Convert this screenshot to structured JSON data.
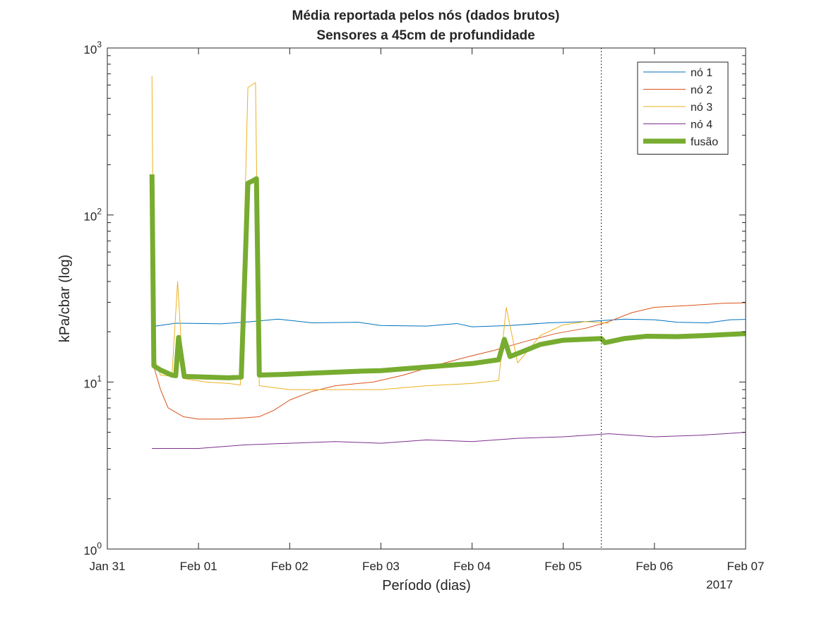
{
  "chart_data": {
    "type": "line",
    "title": "Média reportada pelos nós (dados brutos)",
    "subtitle": "Sensores a 45cm de profundidade",
    "xlabel": "Período (dias)",
    "ylabel": "kPa/cbar (log)",
    "y_scale": "log",
    "ylim": [
      1,
      1000
    ],
    "xlim": [
      "2017-01-31",
      "2017-02-07"
    ],
    "x_ticks": [
      "Jan 31",
      "Feb 01",
      "Feb 02",
      "Feb 03",
      "Feb 04",
      "Feb 05",
      "Feb 06",
      "Feb 07"
    ],
    "x_year_label": "2017",
    "y_ticks": [
      {
        "base": "10",
        "exp": "0"
      },
      {
        "base": "10",
        "exp": "1"
      },
      {
        "base": "10",
        "exp": "2"
      },
      {
        "base": "10",
        "exp": "3"
      }
    ],
    "grid": false,
    "legend_position": "top-right",
    "vline": {
      "x": "2017-02-05 10:00",
      "style": "dotted",
      "color": "#000000"
    },
    "series": [
      {
        "name": "nó 1",
        "color": "#0072BD",
        "width": 1,
        "points": [
          [
            "2017-01-31 11:45",
            22
          ],
          [
            "2017-01-31 12:00",
            21.5
          ],
          [
            "2017-01-31 18:00",
            22.5
          ],
          [
            "2017-02-01 06:00",
            22.3
          ],
          [
            "2017-02-01 14:00",
            23
          ],
          [
            "2017-02-01 21:00",
            23.8
          ],
          [
            "2017-02-02 06:00",
            22.6
          ],
          [
            "2017-02-02 18:00",
            22.8
          ],
          [
            "2017-02-03 00:00",
            21.8
          ],
          [
            "2017-02-03 12:00",
            21.6
          ],
          [
            "2017-02-03 20:00",
            22.4
          ],
          [
            "2017-02-04 00:00",
            21.4
          ],
          [
            "2017-02-04 10:00",
            21.8
          ],
          [
            "2017-02-04 20:00",
            22.6
          ],
          [
            "2017-02-05 06:00",
            23
          ],
          [
            "2017-02-05 16:00",
            23.8
          ],
          [
            "2017-02-06 00:00",
            23.6
          ],
          [
            "2017-02-06 06:00",
            22.8
          ],
          [
            "2017-02-06 14:00",
            22.6
          ],
          [
            "2017-02-06 20:00",
            23.6
          ],
          [
            "2017-02-07 16:00",
            24.2
          ]
        ]
      },
      {
        "name": "nó 2",
        "color": "#D95319",
        "width": 1,
        "points": [
          [
            "2017-01-31 11:45",
            13.5
          ],
          [
            "2017-01-31 14:00",
            9
          ],
          [
            "2017-01-31 16:00",
            7
          ],
          [
            "2017-01-31 20:00",
            6.2
          ],
          [
            "2017-02-01 00:00",
            6
          ],
          [
            "2017-02-01 06:00",
            6
          ],
          [
            "2017-02-01 12:00",
            6.1
          ],
          [
            "2017-02-01 16:00",
            6.2
          ],
          [
            "2017-02-01 20:00",
            6.8
          ],
          [
            "2017-02-02 00:00",
            7.8
          ],
          [
            "2017-02-02 06:00",
            8.8
          ],
          [
            "2017-02-02 12:00",
            9.5
          ],
          [
            "2017-02-02 22:00",
            10
          ],
          [
            "2017-02-03 06:00",
            11
          ],
          [
            "2017-02-03 14:00",
            12.5
          ],
          [
            "2017-02-03 22:00",
            14
          ],
          [
            "2017-02-04 06:00",
            15.5
          ],
          [
            "2017-02-04 14:00",
            17.5
          ],
          [
            "2017-02-04 22:00",
            19.5
          ],
          [
            "2017-02-05 06:00",
            21
          ],
          [
            "2017-02-05 12:00",
            23
          ],
          [
            "2017-02-05 18:00",
            26
          ],
          [
            "2017-02-06 00:00",
            28
          ],
          [
            "2017-02-06 10:00",
            28.8
          ],
          [
            "2017-02-06 18:00",
            29.6
          ],
          [
            "2017-02-07 06:00",
            30
          ],
          [
            "2017-02-07 16:00",
            34
          ]
        ]
      },
      {
        "name": "nó 3",
        "color": "#EDB120",
        "width": 1,
        "points": [
          [
            "2017-01-31 11:45",
            680
          ],
          [
            "2017-01-31 12:15",
            14
          ],
          [
            "2017-01-31 14:00",
            11
          ],
          [
            "2017-01-31 17:00",
            10.8
          ],
          [
            "2017-01-31 18:30",
            40
          ],
          [
            "2017-01-31 20:00",
            10.5
          ],
          [
            "2017-02-01 02:00",
            10
          ],
          [
            "2017-02-01 08:00",
            9.8
          ],
          [
            "2017-02-01 11:00",
            9.6
          ],
          [
            "2017-02-01 13:00",
            580
          ],
          [
            "2017-02-01 15:00",
            620
          ],
          [
            "2017-02-01 16:00",
            9.5
          ],
          [
            "2017-02-02 00:00",
            9
          ],
          [
            "2017-02-02 12:00",
            9
          ],
          [
            "2017-02-03 00:00",
            9
          ],
          [
            "2017-02-03 12:00",
            9.5
          ],
          [
            "2017-02-04 00:00",
            9.8
          ],
          [
            "2017-02-04 07:00",
            10.2
          ],
          [
            "2017-02-04 09:00",
            28
          ],
          [
            "2017-02-04 12:00",
            13
          ],
          [
            "2017-02-04 18:00",
            19
          ],
          [
            "2017-02-05 00:00",
            22
          ],
          [
            "2017-02-05 06:00",
            23
          ],
          [
            "2017-02-05 12:00",
            22.5
          ]
        ]
      },
      {
        "name": "nó 4",
        "color": "#7E2F8E",
        "width": 1,
        "points": [
          [
            "2017-01-31 11:45",
            4
          ],
          [
            "2017-02-01 00:00",
            4
          ],
          [
            "2017-02-01 12:00",
            4.2
          ],
          [
            "2017-02-02 00:00",
            4.3
          ],
          [
            "2017-02-02 12:00",
            4.4
          ],
          [
            "2017-02-03 00:00",
            4.3
          ],
          [
            "2017-02-03 12:00",
            4.5
          ],
          [
            "2017-02-04 00:00",
            4.4
          ],
          [
            "2017-02-04 12:00",
            4.6
          ],
          [
            "2017-02-05 00:00",
            4.7
          ],
          [
            "2017-02-05 12:00",
            4.9
          ],
          [
            "2017-02-06 00:00",
            4.7
          ],
          [
            "2017-02-06 12:00",
            4.8
          ],
          [
            "2017-02-07 06:00",
            5.1
          ],
          [
            "2017-02-07 16:00",
            4.9
          ]
        ]
      },
      {
        "name": "fusão",
        "color": "#77AC30",
        "width": 7,
        "points": [
          [
            "2017-01-31 11:45",
            175
          ],
          [
            "2017-01-31 12:15",
            12.5
          ],
          [
            "2017-01-31 14:00",
            11.8
          ],
          [
            "2017-01-31 17:00",
            11
          ],
          [
            "2017-01-31 18:00",
            10.9
          ],
          [
            "2017-01-31 18:45",
            18.5
          ],
          [
            "2017-01-31 20:15",
            10.8
          ],
          [
            "2017-02-01 02:00",
            10.7
          ],
          [
            "2017-02-01 08:00",
            10.6
          ],
          [
            "2017-02-01 11:15",
            10.7
          ],
          [
            "2017-02-01 13:00",
            155
          ],
          [
            "2017-02-01 14:15",
            160
          ],
          [
            "2017-02-01 15:15",
            165
          ],
          [
            "2017-02-01 16:00",
            11
          ],
          [
            "2017-02-01 22:00",
            11.1
          ],
          [
            "2017-02-02 06:00",
            11.3
          ],
          [
            "2017-02-02 18:00",
            11.6
          ],
          [
            "2017-02-03 00:00",
            11.7
          ],
          [
            "2017-02-03 06:00",
            12
          ],
          [
            "2017-02-03 18:00",
            12.6
          ],
          [
            "2017-02-04 00:00",
            12.9
          ],
          [
            "2017-02-04 07:00",
            13.6
          ],
          [
            "2017-02-04 08:30",
            18
          ],
          [
            "2017-02-04 10:00",
            14.2
          ],
          [
            "2017-02-04 18:00",
            16.8
          ],
          [
            "2017-02-05 00:00",
            17.8
          ],
          [
            "2017-02-05 10:00",
            18.2
          ],
          [
            "2017-02-05 11:00",
            17.2
          ],
          [
            "2017-02-05 16:00",
            18.2
          ],
          [
            "2017-02-05 22:00",
            18.8
          ],
          [
            "2017-02-06 06:00",
            18.7
          ],
          [
            "2017-02-06 14:00",
            19
          ],
          [
            "2017-02-07 00:00",
            19.5
          ],
          [
            "2017-02-07 16:00",
            21
          ]
        ]
      }
    ]
  }
}
